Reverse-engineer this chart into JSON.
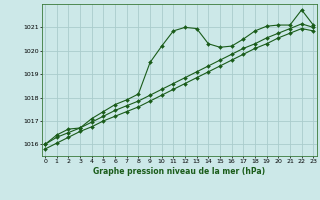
{
  "title": "Graphe pression niveau de la mer (hPa)",
  "bg_color": "#cce8e8",
  "grid_color": "#aacccc",
  "line_color": "#1a5c1a",
  "marker_color": "#1a5c1a",
  "xlim": [
    -0.3,
    23.3
  ],
  "ylim": [
    1015.5,
    1022.0
  ],
  "yticks": [
    1016,
    1017,
    1018,
    1019,
    1020,
    1021
  ],
  "xticks": [
    0,
    1,
    2,
    3,
    4,
    5,
    6,
    7,
    8,
    9,
    10,
    11,
    12,
    13,
    14,
    15,
    16,
    17,
    18,
    19,
    20,
    21,
    22,
    23
  ],
  "series": [
    [
      1016.0,
      1016.4,
      1016.65,
      1016.7,
      1017.1,
      1017.4,
      1017.7,
      1017.9,
      1018.15,
      1019.5,
      1020.2,
      1020.85,
      1021.0,
      1020.95,
      1020.3,
      1020.15,
      1020.2,
      1020.5,
      1020.85,
      1021.05,
      1021.1,
      1021.1,
      1021.75,
      1021.1
    ],
    [
      1016.0,
      1016.3,
      1016.5,
      1016.7,
      1016.95,
      1017.2,
      1017.45,
      1017.65,
      1017.85,
      1018.1,
      1018.35,
      1018.6,
      1018.85,
      1019.1,
      1019.35,
      1019.6,
      1019.85,
      1020.1,
      1020.3,
      1020.55,
      1020.75,
      1020.95,
      1021.15,
      1021.0
    ],
    [
      1015.8,
      1016.05,
      1016.3,
      1016.55,
      1016.75,
      1017.0,
      1017.2,
      1017.4,
      1017.6,
      1017.85,
      1018.1,
      1018.35,
      1018.6,
      1018.85,
      1019.1,
      1019.35,
      1019.6,
      1019.85,
      1020.1,
      1020.3,
      1020.55,
      1020.75,
      1020.95,
      1020.85
    ]
  ]
}
